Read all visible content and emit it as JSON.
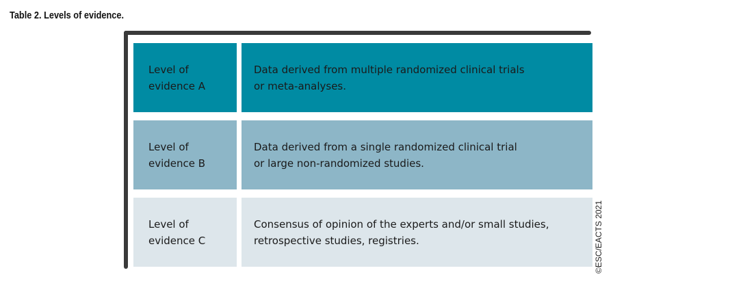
{
  "title": "Table 2. Levels of evidence.",
  "rows": [
    {
      "level": [
        "Level of",
        "evidence A"
      ],
      "desc": [
        "Data derived from multiple randomized clinical trials",
        "or meta-analyses."
      ],
      "color": "#008ba3"
    },
    {
      "level": [
        "Level of",
        "evidence B"
      ],
      "desc": [
        "Data derived from a single randomized clinical trial",
        "or large non-randomized studies."
      ],
      "color": "#8db6c7"
    },
    {
      "level": [
        "Level of",
        "evidence C"
      ],
      "desc": [
        "Consensus of opinion of the experts and/or small studies,",
        "retrospective studies, registries."
      ],
      "color": "#dde6eb"
    }
  ],
  "copyright": "©ESC/EACTS 2021"
}
